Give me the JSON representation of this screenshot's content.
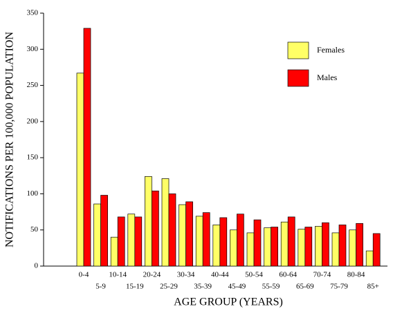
{
  "chart_data": {
    "type": "bar",
    "categories": [
      "0-4",
      "5-9",
      "10-14",
      "15-19",
      "20-24",
      "25-29",
      "30-34",
      "35-39",
      "40-44",
      "45-49",
      "50-54",
      "55-59",
      "60-64",
      "65-69",
      "70-74",
      "75-79",
      "80-84",
      "85+"
    ],
    "series": [
      {
        "name": "Females",
        "color": "#ffff66",
        "values": [
          267,
          86,
          40,
          72,
          124,
          121,
          85,
          69,
          57,
          50,
          46,
          53,
          61,
          51,
          55,
          46,
          50,
          21
        ]
      },
      {
        "name": "Males",
        "color": "#ff0000",
        "values": [
          329,
          98,
          68,
          68,
          104,
          100,
          89,
          74,
          67,
          72,
          64,
          54,
          68,
          54,
          60,
          57,
          59,
          45
        ]
      }
    ],
    "ylim": [
      0,
      350
    ],
    "yticks": [
      0,
      50,
      100,
      150,
      200,
      250,
      300,
      350
    ],
    "xlabel": "AGE GROUP (YEARS)",
    "ylabel": "NOTIFICATIONS PER 100,000 POPULATION",
    "grid": false,
    "legend": "top-right"
  }
}
